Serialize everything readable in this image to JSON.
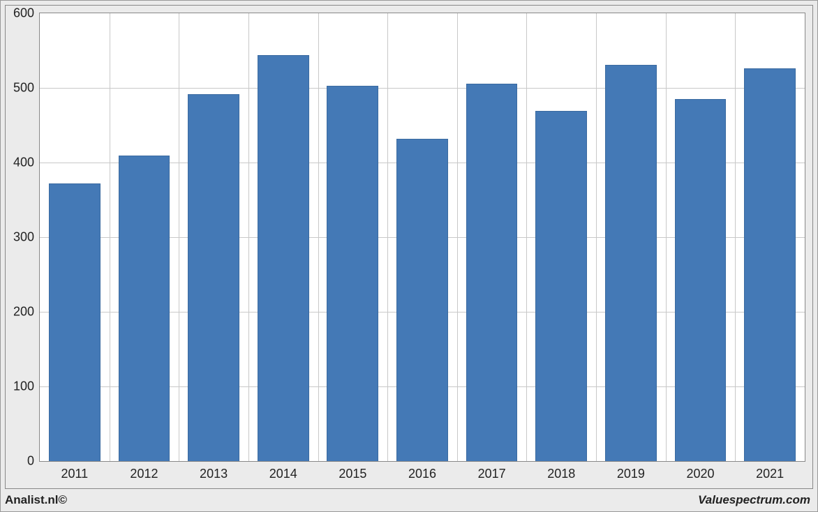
{
  "chart": {
    "type": "bar",
    "categories": [
      "2011",
      "2012",
      "2013",
      "2014",
      "2015",
      "2016",
      "2017",
      "2018",
      "2019",
      "2020",
      "2021"
    ],
    "values": [
      372,
      409,
      492,
      544,
      503,
      432,
      506,
      469,
      531,
      485,
      526
    ],
    "bar_color": "#4479b6",
    "bar_border_color": "#3a6aa0",
    "background_color": "#ffffff",
    "page_background": "#ebebeb",
    "grid_color": "#c8c8c8",
    "axis_fontsize": 18,
    "y_min": 0,
    "y_max": 600,
    "y_tick_step": 100,
    "y_ticks": [
      0,
      100,
      200,
      300,
      400,
      500,
      600
    ],
    "bar_width_ratio": 0.74
  },
  "footer": {
    "left": "Analist.nl©",
    "right": "Valuespectrum.com"
  }
}
